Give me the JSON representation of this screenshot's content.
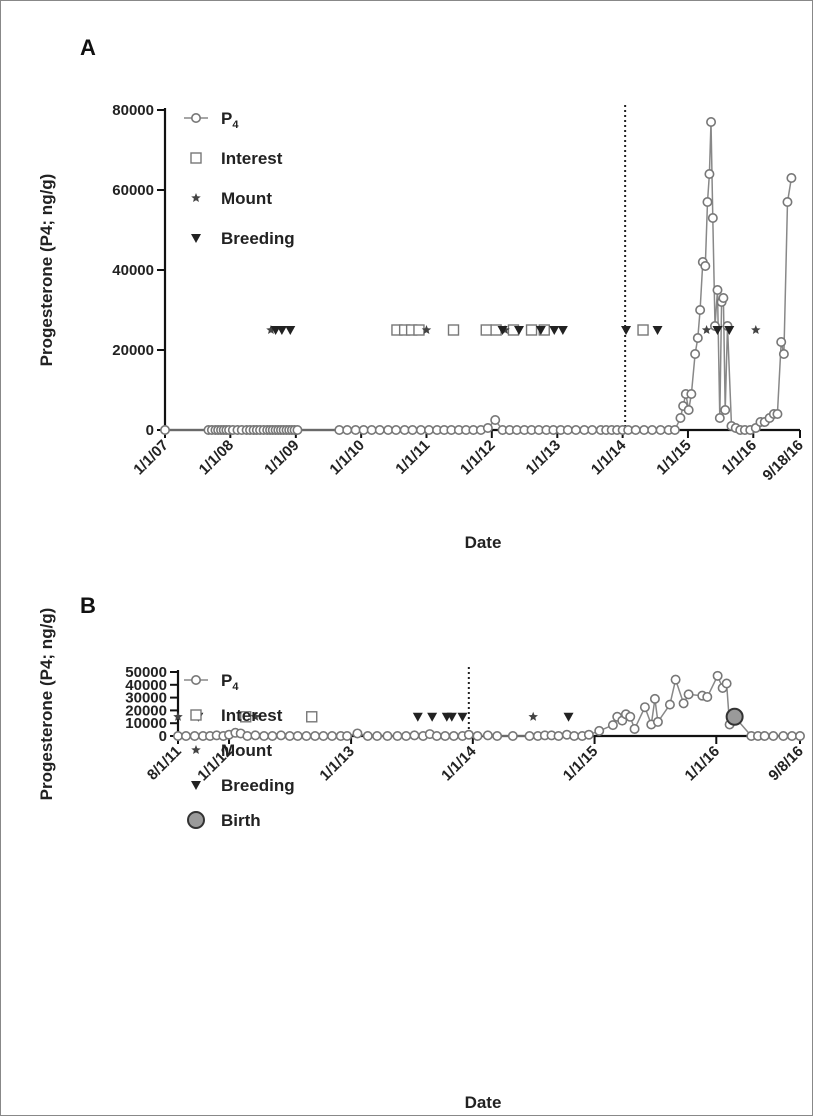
{
  "chart_data": [
    {
      "type": "line",
      "panel_label": "A",
      "xlabel": "Date",
      "ylabel": "Progesterone (P4; ng/g)",
      "ylim": [
        0,
        80000
      ],
      "yticks": [
        "0",
        "20000",
        "40000",
        "60000",
        "80000"
      ],
      "xlim": [
        "2007-01-01",
        "2016-09-18"
      ],
      "xticks": [
        {
          "date": "2007-01-01",
          "label": "1/1/07"
        },
        {
          "date": "2008-01-01",
          "label": "1/1/08"
        },
        {
          "date": "2009-01-01",
          "label": "1/1/09"
        },
        {
          "date": "2010-01-01",
          "label": "1/1/10"
        },
        {
          "date": "2011-01-01",
          "label": "1/1/11"
        },
        {
          "date": "2012-01-01",
          "label": "1/1/12"
        },
        {
          "date": "2013-01-01",
          "label": "1/1/13"
        },
        {
          "date": "2014-01-01",
          "label": "1/1/14"
        },
        {
          "date": "2015-01-01",
          "label": "1/1/15"
        },
        {
          "date": "2016-01-01",
          "label": "1/1/16"
        },
        {
          "date": "2016-09-18",
          "label": "9/18/16"
        }
      ],
      "vline": "2014-01-15",
      "legend": [
        {
          "symbol": "line-circle",
          "label": "P",
          "sub": "4"
        },
        {
          "symbol": "square",
          "label": "Interest"
        },
        {
          "symbol": "star",
          "label": "Mount"
        },
        {
          "symbol": "triangle",
          "label": "Breeding"
        }
      ],
      "series": [
        {
          "name": "P4",
          "points": [
            [
              "2007-01-01",
              0
            ],
            [
              "2007-09-01",
              0
            ],
            [
              "2007-09-20",
              0
            ],
            [
              "2007-10-10",
              0
            ],
            [
              "2007-10-25",
              0
            ],
            [
              "2007-11-10",
              0
            ],
            [
              "2007-11-25",
              0
            ],
            [
              "2007-12-10",
              0
            ],
            [
              "2007-12-25",
              0
            ],
            [
              "2008-01-15",
              0
            ],
            [
              "2008-02-10",
              0
            ],
            [
              "2008-03-05",
              0
            ],
            [
              "2008-04-01",
              0
            ],
            [
              "2008-04-20",
              0
            ],
            [
              "2008-05-10",
              0
            ],
            [
              "2008-05-28",
              0
            ],
            [
              "2008-06-15",
              0
            ],
            [
              "2008-07-05",
              0
            ],
            [
              "2008-07-25",
              0
            ],
            [
              "2008-08-10",
              0
            ],
            [
              "2008-08-25",
              0
            ],
            [
              "2008-09-10",
              0
            ],
            [
              "2008-09-25",
              0
            ],
            [
              "2008-10-10",
              0
            ],
            [
              "2008-10-25",
              0
            ],
            [
              "2008-11-10",
              0
            ],
            [
              "2008-11-25",
              0
            ],
            [
              "2008-12-10",
              0
            ],
            [
              "2008-12-25",
              0
            ],
            [
              "2009-01-10",
              0
            ],
            [
              "2009-09-01",
              0
            ],
            [
              "2009-10-15",
              0
            ],
            [
              "2009-12-01",
              0
            ],
            [
              "2010-01-15",
              0
            ],
            [
              "2010-03-01",
              0
            ],
            [
              "2010-04-15",
              0
            ],
            [
              "2010-06-01",
              0
            ],
            [
              "2010-07-15",
              0
            ],
            [
              "2010-09-01",
              0
            ],
            [
              "2010-10-15",
              0
            ],
            [
              "2010-12-01",
              0
            ],
            [
              "2011-01-15",
              0
            ],
            [
              "2011-03-01",
              0
            ],
            [
              "2011-04-10",
              0
            ],
            [
              "2011-05-20",
              0
            ],
            [
              "2011-07-01",
              0
            ],
            [
              "2011-08-10",
              0
            ],
            [
              "2011-09-20",
              0
            ],
            [
              "2011-11-01",
              0
            ],
            [
              "2011-12-10",
              500
            ],
            [
              "2012-01-20",
              2500
            ],
            [
              "2012-03-01",
              0
            ],
            [
              "2012-04-10",
              0
            ],
            [
              "2012-05-20",
              0
            ],
            [
              "2012-07-01",
              0
            ],
            [
              "2012-08-10",
              0
            ],
            [
              "2012-09-20",
              0
            ],
            [
              "2012-11-01",
              0
            ],
            [
              "2012-12-10",
              0
            ],
            [
              "2013-01-20",
              0
            ],
            [
              "2013-03-01",
              0
            ],
            [
              "2013-04-15",
              0
            ],
            [
              "2013-06-01",
              0
            ],
            [
              "2013-07-15",
              0
            ],
            [
              "2013-09-01",
              0
            ],
            [
              "2013-10-01",
              0
            ],
            [
              "2013-11-01",
              0
            ],
            [
              "2013-12-01",
              0
            ],
            [
              "2014-01-01",
              0
            ],
            [
              "2014-02-01",
              0
            ],
            [
              "2014-03-15",
              0
            ],
            [
              "2014-05-01",
              0
            ],
            [
              "2014-06-15",
              0
            ],
            [
              "2014-08-01",
              0
            ],
            [
              "2014-09-15",
              0
            ],
            [
              "2014-10-20",
              0
            ],
            [
              "2014-11-20",
              3000
            ],
            [
              "2014-12-05",
              6000
            ],
            [
              "2014-12-20",
              9000
            ],
            [
              "2015-01-05",
              5000
            ],
            [
              "2015-01-20",
              9000
            ],
            [
              "2015-02-10",
              19000
            ],
            [
              "2015-02-25",
              23000
            ],
            [
              "2015-03-10",
              30000
            ],
            [
              "2015-03-25",
              42000
            ],
            [
              "2015-04-08",
              41000
            ],
            [
              "2015-04-20",
              57000
            ],
            [
              "2015-05-01",
              64000
            ],
            [
              "2015-05-10",
              77000
            ],
            [
              "2015-05-20",
              53000
            ],
            [
              "2015-06-01",
              26000
            ],
            [
              "2015-06-15",
              35000
            ],
            [
              "2015-06-28",
              3000
            ],
            [
              "2015-07-08",
              32000
            ],
            [
              "2015-07-18",
              33000
            ],
            [
              "2015-07-28",
              5000
            ],
            [
              "2015-08-10",
              26000
            ],
            [
              "2015-09-01",
              1000
            ],
            [
              "2015-09-25",
              500
            ],
            [
              "2015-10-20",
              0
            ],
            [
              "2015-11-15",
              0
            ],
            [
              "2015-12-15",
              0
            ],
            [
              "2016-01-15",
              500
            ],
            [
              "2016-02-10",
              2000
            ],
            [
              "2016-03-05",
              2000
            ],
            [
              "2016-04-01",
              3000
            ],
            [
              "2016-04-25",
              4000
            ],
            [
              "2016-05-15",
              4000
            ],
            [
              "2016-06-05",
              22000
            ],
            [
              "2016-06-20",
              19000
            ],
            [
              "2016-07-10",
              57000
            ],
            [
              "2016-08-01",
              63000
            ]
          ]
        }
      ],
      "behaviors": {
        "y": 25000,
        "interest": [
          "2010-07-20",
          "2010-09-01",
          "2010-10-10",
          "2010-11-20",
          "2011-06-01",
          "2011-12-01",
          "2012-01-25",
          "2012-05-01",
          "2012-08-10",
          "2012-10-20",
          "2014-04-25"
        ],
        "mount": [
          "2008-08-15",
          "2011-01-01",
          "2012-03-15",
          "2015-04-15",
          "2016-01-15"
        ],
        "breeding": [
          "2008-09-10",
          "2008-10-15",
          "2008-12-01",
          "2012-03-01",
          "2012-06-01",
          "2012-10-01",
          "2012-12-15",
          "2013-02-01",
          "2014-01-20",
          "2014-07-15",
          "2015-06-15",
          "2015-08-20"
        ]
      }
    },
    {
      "type": "line",
      "panel_label": "B",
      "xlabel": "Date",
      "ylabel": "Progesterone (P4; ng/g)",
      "ylim": [
        0,
        50000
      ],
      "yticks": [
        "0",
        "10000",
        "20000",
        "30000",
        "40000",
        "50000"
      ],
      "xlim": [
        "2011-08-01",
        "2016-09-08"
      ],
      "xticks": [
        {
          "date": "2011-08-01",
          "label": "8/1/11"
        },
        {
          "date": "2012-01-01",
          "label": "1/1/12"
        },
        {
          "date": "2013-01-01",
          "label": "1/1/13"
        },
        {
          "date": "2014-01-01",
          "label": "1/1/14"
        },
        {
          "date": "2015-01-01",
          "label": "1/1/15"
        },
        {
          "date": "2016-01-01",
          "label": "1/1/16"
        },
        {
          "date": "2016-09-08",
          "label": "9/8/16"
        }
      ],
      "vline": "2013-12-20",
      "legend": [
        {
          "symbol": "line-circle",
          "label": "P",
          "sub": "4"
        },
        {
          "symbol": "square",
          "label": "Interest"
        },
        {
          "symbol": "star",
          "label": "Mount"
        },
        {
          "symbol": "triangle",
          "label": "Breeding"
        },
        {
          "symbol": "big-circle",
          "label": "Birth"
        }
      ],
      "series": [
        {
          "name": "P4",
          "points": [
            [
              "2011-08-01",
              0
            ],
            [
              "2011-08-25",
              0
            ],
            [
              "2011-09-20",
              0
            ],
            [
              "2011-10-15",
              0
            ],
            [
              "2011-11-05",
              0
            ],
            [
              "2011-11-25",
              500
            ],
            [
              "2011-12-15",
              0
            ],
            [
              "2012-01-01",
              1000
            ],
            [
              "2012-01-20",
              2500
            ],
            [
              "2012-02-05",
              2000
            ],
            [
              "2012-02-25",
              0
            ],
            [
              "2012-03-20",
              500
            ],
            [
              "2012-04-15",
              0
            ],
            [
              "2012-05-10",
              0
            ],
            [
              "2012-06-05",
              500
            ],
            [
              "2012-07-01",
              0
            ],
            [
              "2012-07-25",
              0
            ],
            [
              "2012-08-20",
              0
            ],
            [
              "2012-09-15",
              0
            ],
            [
              "2012-10-10",
              0
            ],
            [
              "2012-11-05",
              0
            ],
            [
              "2012-12-01",
              0
            ],
            [
              "2012-12-20",
              0
            ],
            [
              "2013-01-20",
              2000
            ],
            [
              "2013-02-20",
              0
            ],
            [
              "2013-03-20",
              0
            ],
            [
              "2013-04-20",
              0
            ],
            [
              "2013-05-20",
              0
            ],
            [
              "2013-06-15",
              0
            ],
            [
              "2013-07-10",
              500
            ],
            [
              "2013-08-05",
              0
            ],
            [
              "2013-08-25",
              1500
            ],
            [
              "2013-09-15",
              0
            ],
            [
              "2013-10-10",
              0
            ],
            [
              "2013-11-05",
              0
            ],
            [
              "2013-12-01",
              0
            ],
            [
              "2013-12-20",
              1000
            ],
            [
              "2014-01-15",
              0
            ],
            [
              "2014-02-15",
              500
            ],
            [
              "2014-03-15",
              0
            ],
            [
              "2014-05-01",
              0
            ],
            [
              "2014-06-20",
              0
            ],
            [
              "2014-07-15",
              0
            ],
            [
              "2014-08-05",
              500
            ],
            [
              "2014-08-25",
              500
            ],
            [
              "2014-09-15",
              0
            ],
            [
              "2014-10-10",
              1000
            ],
            [
              "2014-11-01",
              0
            ],
            [
              "2014-11-25",
              0
            ],
            [
              "2014-12-15",
              1000
            ],
            [
              "2015-01-15",
              4000
            ],
            [
              "2015-02-25",
              8500
            ],
            [
              "2015-03-10",
              15000
            ],
            [
              "2015-03-25",
              12000
            ],
            [
              "2015-04-05",
              17000
            ],
            [
              "2015-04-18",
              15000
            ],
            [
              "2015-05-01",
              5500
            ],
            [
              "2015-06-01",
              22500
            ],
            [
              "2015-06-20",
              9000
            ],
            [
              "2015-07-01",
              29000
            ],
            [
              "2015-07-10",
              11000
            ],
            [
              "2015-08-15",
              24500
            ],
            [
              "2015-09-01",
              44000
            ],
            [
              "2015-09-25",
              25500
            ],
            [
              "2015-10-10",
              32500
            ],
            [
              "2015-11-20",
              31500
            ],
            [
              "2015-12-05",
              30500
            ],
            [
              "2016-01-05",
              47000
            ],
            [
              "2016-01-20",
              37500
            ],
            [
              "2016-02-01",
              41000
            ],
            [
              "2016-02-10",
              9000
            ],
            [
              "2016-02-25",
              15000
            ],
            [
              "2016-04-15",
              0
            ],
            [
              "2016-05-05",
              0
            ],
            [
              "2016-05-25",
              0
            ],
            [
              "2016-06-20",
              0
            ],
            [
              "2016-07-20",
              0
            ],
            [
              "2016-08-15",
              0
            ],
            [
              "2016-09-08",
              0
            ]
          ]
        }
      ],
      "behaviors": {
        "y": 15000,
        "interest": [
          "2012-02-20",
          "2012-09-05"
        ],
        "mount": [
          "2011-08-01",
          "2012-03-20",
          "2014-07-01"
        ],
        "breeding": [
          "2011-10-01",
          "2013-07-20",
          "2013-09-01",
          "2013-10-15",
          "2013-10-30",
          "2013-12-01",
          "2014-10-15"
        ],
        "birth": [
          "2016-02-25"
        ]
      }
    }
  ]
}
